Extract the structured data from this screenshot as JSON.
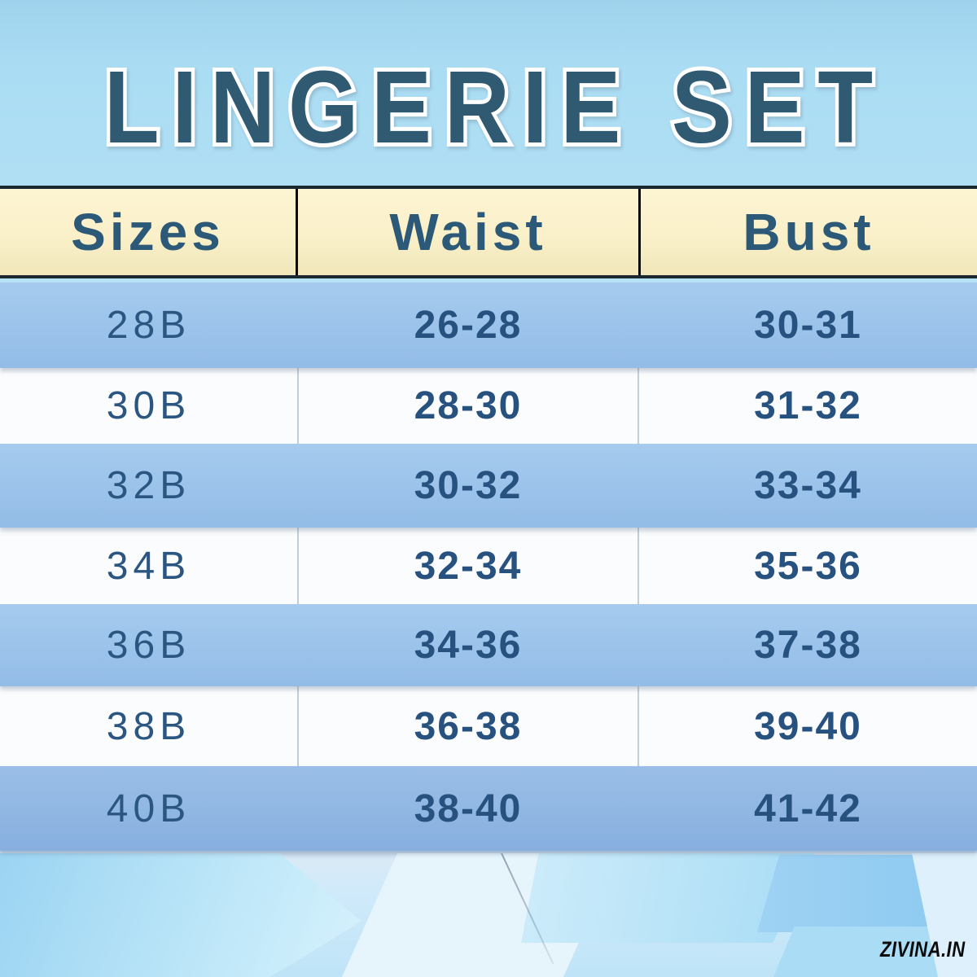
{
  "title": "LINGERIE SET",
  "table": {
    "headers": {
      "sizes": "Sizes",
      "waist": "Waist",
      "bust": "Bust"
    },
    "rows": [
      {
        "size": "28B",
        "waist": "26-28",
        "bust": "30-31"
      },
      {
        "size": "30B",
        "waist": "28-30",
        "bust": "31-32"
      },
      {
        "size": "32B",
        "waist": "30-32",
        "bust": "33-34"
      },
      {
        "size": "34B",
        "waist": "32-34",
        "bust": "35-36"
      },
      {
        "size": "36B",
        "waist": "34-36",
        "bust": "37-38"
      },
      {
        "size": "38B",
        "waist": "36-38",
        "bust": "39-40"
      },
      {
        "size": "40B",
        "waist": "38-40",
        "bust": "41-42"
      }
    ]
  },
  "watermark": "ZIVINA.IN",
  "colors": {
    "title_text": "#305a72",
    "header_cell_bg": "#faf0c9",
    "header_text": "#2c5977",
    "row_blue": "#9ac2ea",
    "row_white": "#fbfcfd",
    "value_text": "#27517f",
    "background_top": "#a9dcf3",
    "watermark_text": "#0b0b0b"
  },
  "chart_data": {
    "type": "table",
    "title": "LINGERIE SET",
    "columns": [
      "Sizes",
      "Waist",
      "Bust"
    ],
    "rows": [
      [
        "28B",
        "26-28",
        "30-31"
      ],
      [
        "30B",
        "28-30",
        "31-32"
      ],
      [
        "32B",
        "30-32",
        "33-34"
      ],
      [
        "34B",
        "32-34",
        "35-36"
      ],
      [
        "36B",
        "34-36",
        "37-38"
      ],
      [
        "38B",
        "36-38",
        "39-40"
      ],
      [
        "40B",
        "38-40",
        "41-42"
      ]
    ]
  }
}
